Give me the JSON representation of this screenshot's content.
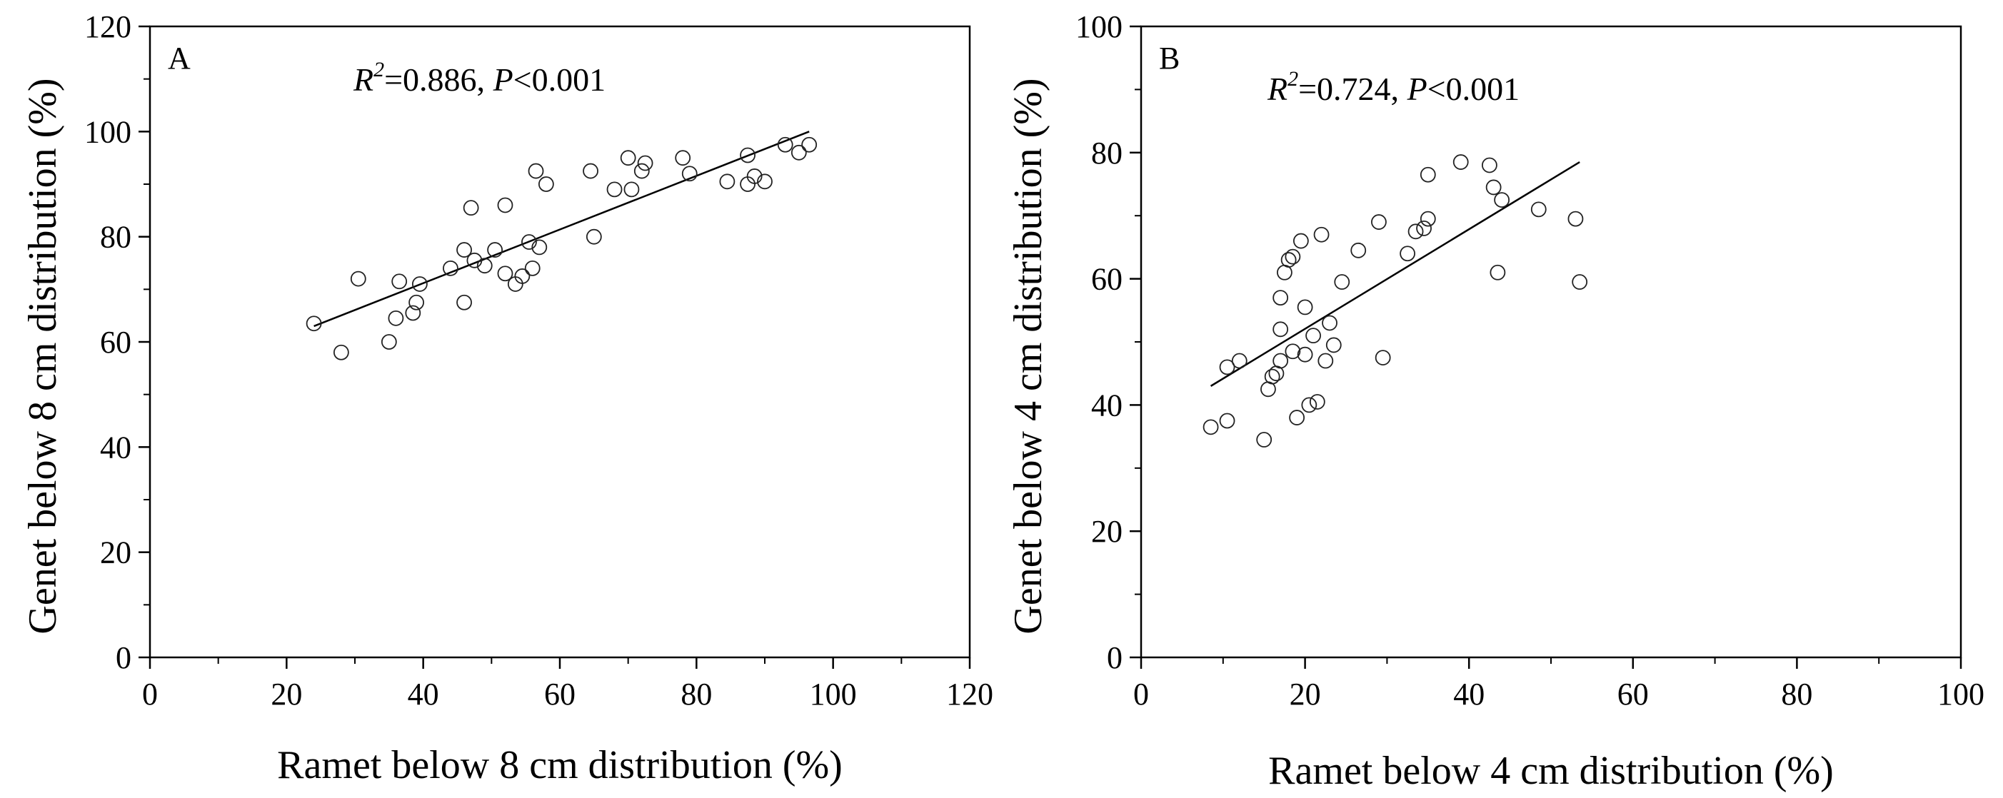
{
  "chart_data": [
    {
      "type": "scatter",
      "panel_label": "A",
      "annotation": {
        "r2_symbol": "R",
        "r2_sup": "2",
        "r2_value": "=0.886, ",
        "p_symbol": "P",
        "p_value": "<0.001"
      },
      "xlabel": "Ramet below 8 cm distribution (%)",
      "ylabel": "Genet below 8 cm distribution (%)",
      "xlim": [
        0,
        120
      ],
      "ylim": [
        0,
        120
      ],
      "xticks": [
        0,
        20,
        40,
        60,
        80,
        100,
        120
      ],
      "yticks": [
        0,
        20,
        40,
        60,
        80,
        100,
        120
      ],
      "x": [
        24,
        28,
        30.5,
        35,
        36,
        36.5,
        38.5,
        39,
        39.5,
        44,
        46,
        46,
        47,
        47.5,
        49,
        50.5,
        52,
        52,
        53.5,
        54.5,
        55.5,
        56,
        56.5,
        57,
        58,
        64.5,
        65,
        68,
        70,
        70.5,
        72,
        72.5,
        78,
        79,
        84.5,
        87.5,
        87.5,
        88.5,
        90,
        93,
        95,
        96.5
      ],
      "y": [
        63.5,
        58,
        72,
        60,
        64.5,
        71.5,
        65.5,
        67.5,
        71,
        74,
        67.5,
        77.5,
        85.5,
        75.5,
        74.5,
        77.5,
        73,
        86,
        71,
        72.5,
        79,
        74,
        92.5,
        78,
        90,
        92.5,
        80,
        89,
        95,
        89,
        92.5,
        94,
        95,
        92,
        90.5,
        95.5,
        90,
        91.5,
        90.5,
        97.5,
        96,
        97.5
      ],
      "fit": {
        "x": [
          24,
          96.5
        ],
        "y": [
          63,
          100
        ]
      },
      "grid": false,
      "marker": "open-circle"
    },
    {
      "type": "scatter",
      "panel_label": "B",
      "annotation": {
        "r2_symbol": "R",
        "r2_sup": "2",
        "r2_value": "=0.724, ",
        "p_symbol": "P",
        "p_value": "<0.001"
      },
      "xlabel": "Ramet below 4 cm distribution (%)",
      "ylabel": "Genet below 4 cm distribution (%)",
      "xlim": [
        0,
        100
      ],
      "ylim": [
        0,
        100
      ],
      "xticks": [
        0,
        20,
        40,
        60,
        80,
        100
      ],
      "yticks": [
        0,
        20,
        40,
        60,
        80,
        100
      ],
      "x": [
        8.5,
        10.5,
        10.5,
        12,
        15,
        15.5,
        16,
        16.5,
        17,
        17,
        17,
        17.5,
        18,
        18.5,
        18.5,
        19,
        19.5,
        20,
        20,
        20.5,
        21,
        21.5,
        22,
        22.5,
        23,
        23.5,
        24.5,
        26.5,
        29,
        29.5,
        32.5,
        33.5,
        34.5,
        35,
        35,
        39,
        42.5,
        43,
        43.5,
        44,
        48.5,
        53,
        53.5
      ],
      "y": [
        36.5,
        46,
        37.5,
        47,
        34.5,
        42.5,
        44.5,
        45,
        47,
        52,
        57,
        61,
        63,
        48.5,
        63.5,
        38,
        66,
        48,
        55.5,
        40,
        51,
        40.5,
        67,
        47,
        53,
        49.5,
        59.5,
        64.5,
        69,
        47.5,
        64,
        67.5,
        68,
        69.5,
        76.5,
        78.5,
        78,
        74.5,
        61,
        72.5,
        71,
        69.5,
        59.5
      ],
      "fit": {
        "x": [
          8.5,
          53.5
        ],
        "y": [
          43,
          78.5
        ]
      },
      "grid": false,
      "marker": "open-circle"
    }
  ]
}
